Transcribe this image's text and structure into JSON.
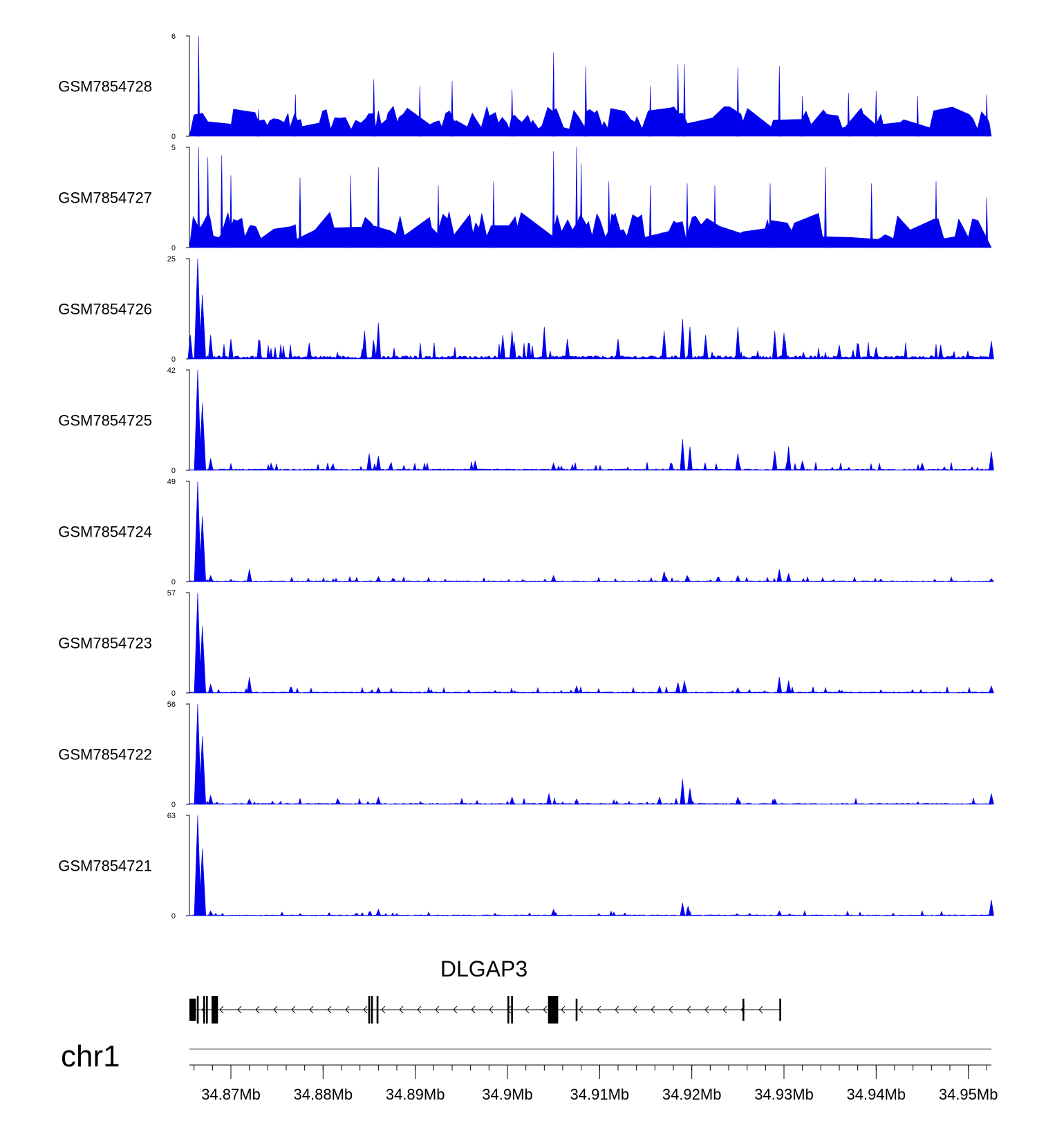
{
  "colors": {
    "signal": "#0000ee",
    "axis": "#000000",
    "chrom_line": "#888888"
  },
  "chart_data": {
    "type": "area",
    "region": {
      "chromosome": "chr1",
      "start_mb": 34.8655,
      "end_mb": 34.9525
    },
    "tracks": [
      {
        "name": "GSM7854728",
        "ymax": 6,
        "ymin": 0,
        "ymax_label": "6",
        "ymin_label": "0",
        "style": "sparse",
        "peaks": [
          [
            34.8665,
            6.0
          ],
          [
            34.873,
            1.6
          ],
          [
            34.877,
            2.5
          ],
          [
            34.8855,
            3.4
          ],
          [
            34.8905,
            3.0
          ],
          [
            34.894,
            3.3
          ],
          [
            34.9005,
            2.8
          ],
          [
            34.905,
            5.0
          ],
          [
            34.9085,
            4.2
          ],
          [
            34.9155,
            3.0
          ],
          [
            34.9185,
            4.3
          ],
          [
            34.9192,
            4.3
          ],
          [
            34.925,
            4.1
          ],
          [
            34.9295,
            4.2
          ],
          [
            34.932,
            2.4
          ],
          [
            34.937,
            2.6
          ],
          [
            34.94,
            2.7
          ],
          [
            34.9445,
            2.4
          ],
          [
            34.952,
            2.5
          ]
        ]
      },
      {
        "name": "GSM7854727",
        "ymax": 5,
        "ymin": 0,
        "ymax_label": "5",
        "ymin_label": "0",
        "style": "sparse",
        "peaks": [
          [
            34.8665,
            5.0
          ],
          [
            34.8675,
            4.5
          ],
          [
            34.869,
            4.6
          ],
          [
            34.87,
            3.6
          ],
          [
            34.8775,
            3.5
          ],
          [
            34.883,
            3.6
          ],
          [
            34.886,
            4.0
          ],
          [
            34.8925,
            3.1
          ],
          [
            34.8985,
            3.3
          ],
          [
            34.905,
            4.8
          ],
          [
            34.9075,
            5.0
          ],
          [
            34.908,
            4.2
          ],
          [
            34.911,
            3.3
          ],
          [
            34.9155,
            3.1
          ],
          [
            34.9195,
            3.2
          ],
          [
            34.9225,
            3.1
          ],
          [
            34.9285,
            3.2
          ],
          [
            34.9345,
            4.0
          ],
          [
            34.9395,
            3.2
          ],
          [
            34.9465,
            3.3
          ],
          [
            34.952,
            2.5
          ]
        ]
      },
      {
        "name": "GSM7854726",
        "ymax": 25,
        "ymin": 0,
        "ymax_label": "25",
        "ymin_label": "0",
        "style": "dense",
        "baseline": 0.8,
        "peaks": [
          [
            34.8656,
            6.0
          ],
          [
            34.8664,
            25.0
          ],
          [
            34.8669,
            16.0
          ],
          [
            34.8678,
            6.0
          ],
          [
            34.87,
            5.0
          ],
          [
            34.8785,
            4.0
          ],
          [
            34.8845,
            7.0
          ],
          [
            34.886,
            9.0
          ],
          [
            34.8995,
            6.0
          ],
          [
            34.9005,
            7.0
          ],
          [
            34.904,
            8.0
          ],
          [
            34.9065,
            5.0
          ],
          [
            34.912,
            5.0
          ],
          [
            34.917,
            7.0
          ],
          [
            34.919,
            10.0
          ],
          [
            34.9198,
            8.0
          ],
          [
            34.9215,
            6.0
          ],
          [
            34.925,
            8.0
          ],
          [
            34.929,
            7.0
          ],
          [
            34.93,
            6.5
          ],
          [
            34.936,
            3.5
          ],
          [
            34.94,
            3.0
          ],
          [
            34.947,
            3.5
          ],
          [
            34.9525,
            4.5
          ]
        ]
      },
      {
        "name": "GSM7854725",
        "ymax": 42,
        "ymin": 0,
        "ymax_label": "42",
        "ymin_label": "0",
        "style": "dense",
        "baseline": 0.6,
        "peaks": [
          [
            34.8664,
            42.0
          ],
          [
            34.8669,
            28.0
          ],
          [
            34.8678,
            5.0
          ],
          [
            34.885,
            7.0
          ],
          [
            34.886,
            6.0
          ],
          [
            34.8965,
            4.0
          ],
          [
            34.905,
            3.0
          ],
          [
            34.919,
            13.0
          ],
          [
            34.9198,
            10.0
          ],
          [
            34.925,
            7.0
          ],
          [
            34.929,
            8.0
          ],
          [
            34.9305,
            10.0
          ],
          [
            34.932,
            4.0
          ],
          [
            34.945,
            3.0
          ],
          [
            34.9525,
            8.0
          ]
        ]
      },
      {
        "name": "GSM7854724",
        "ymax": 49,
        "ymin": 0,
        "ymax_label": "49",
        "ymin_label": "0",
        "style": "dense",
        "baseline": 0.4,
        "peaks": [
          [
            34.8664,
            49.0
          ],
          [
            34.8669,
            32.0
          ],
          [
            34.8678,
            3.0
          ],
          [
            34.872,
            6.0
          ],
          [
            34.886,
            2.5
          ],
          [
            34.905,
            3.0
          ],
          [
            34.917,
            5.0
          ],
          [
            34.9195,
            3.0
          ],
          [
            34.925,
            3.0
          ],
          [
            34.9295,
            6.0
          ],
          [
            34.9305,
            4.0
          ],
          [
            34.9525,
            1.5
          ]
        ]
      },
      {
        "name": "GSM7854723",
        "ymax": 57,
        "ymin": 0,
        "ymax_label": "57",
        "ymin_label": "0",
        "style": "dense",
        "baseline": 0.6,
        "peaks": [
          [
            34.8664,
            57.0
          ],
          [
            34.8669,
            38.0
          ],
          [
            34.8678,
            5.0
          ],
          [
            34.872,
            9.0
          ],
          [
            34.886,
            3.0
          ],
          [
            34.9075,
            4.0
          ],
          [
            34.9165,
            4.0
          ],
          [
            34.9185,
            6.0
          ],
          [
            34.9192,
            7.0
          ],
          [
            34.925,
            3.0
          ],
          [
            34.9295,
            9.0
          ],
          [
            34.9305,
            7.0
          ],
          [
            34.9525,
            4.0
          ]
        ]
      },
      {
        "name": "GSM7854722",
        "ymax": 56,
        "ymin": 0,
        "ymax_label": "56",
        "ymin_label": "0",
        "style": "dense",
        "baseline": 0.6,
        "peaks": [
          [
            34.8664,
            56.0
          ],
          [
            34.8669,
            38.0
          ],
          [
            34.8678,
            5.0
          ],
          [
            34.872,
            3.0
          ],
          [
            34.886,
            4.0
          ],
          [
            34.9005,
            4.0
          ],
          [
            34.9045,
            6.0
          ],
          [
            34.9075,
            3.0
          ],
          [
            34.9165,
            4.0
          ],
          [
            34.919,
            14.0
          ],
          [
            34.9198,
            9.0
          ],
          [
            34.925,
            4.0
          ],
          [
            34.929,
            3.0
          ],
          [
            34.9525,
            6.0
          ]
        ]
      },
      {
        "name": "GSM7854721",
        "ymax": 63,
        "ymin": 0,
        "ymax_label": "63",
        "ymin_label": "0",
        "style": "dense",
        "baseline": 0.5,
        "peaks": [
          [
            34.8664,
            63.0
          ],
          [
            34.8669,
            42.0
          ],
          [
            34.8678,
            3.0
          ],
          [
            34.886,
            4.0
          ],
          [
            34.905,
            4.0
          ],
          [
            34.919,
            8.0
          ],
          [
            34.9196,
            6.0
          ],
          [
            34.9295,
            3.0
          ],
          [
            34.9525,
            10.0
          ]
        ]
      }
    ],
    "gene": {
      "name": "DLGAP3",
      "strand": "-",
      "start_mb": 34.8655,
      "end_mb": 34.9296,
      "exons": [
        [
          34.8655,
          34.8662,
          "thin"
        ],
        [
          34.8663,
          34.8665,
          "thick"
        ],
        [
          34.867,
          34.8671,
          "thick"
        ],
        [
          34.8673,
          34.8674,
          "thick"
        ],
        [
          34.8679,
          34.8686,
          "thick"
        ],
        [
          34.8849,
          34.885,
          "thick"
        ],
        [
          34.8852,
          34.8854,
          "thick"
        ],
        [
          34.8858,
          34.886,
          "thick"
        ],
        [
          34.9,
          34.9001,
          "thick"
        ],
        [
          34.9004,
          34.9005,
          "thick"
        ],
        [
          34.9044,
          34.9055,
          "thick"
        ],
        [
          34.9074,
          34.9075,
          "thin"
        ],
        [
          34.9255,
          34.9256,
          "thin"
        ],
        [
          34.9295,
          34.9296,
          "thin"
        ]
      ]
    },
    "axis": {
      "chromosome_label": "chr1",
      "ticks": [
        {
          "value": 34.87,
          "label": "34.87Mb"
        },
        {
          "value": 34.88,
          "label": "34.88Mb"
        },
        {
          "value": 34.89,
          "label": "34.89Mb"
        },
        {
          "value": 34.9,
          "label": "34.9Mb"
        },
        {
          "value": 34.91,
          "label": "34.91Mb"
        },
        {
          "value": 34.92,
          "label": "34.92Mb"
        },
        {
          "value": 34.93,
          "label": "34.93Mb"
        },
        {
          "value": 34.94,
          "label": "34.94Mb"
        },
        {
          "value": 34.95,
          "label": "34.95Mb"
        }
      ],
      "minor_step_mb": 0.002
    }
  }
}
